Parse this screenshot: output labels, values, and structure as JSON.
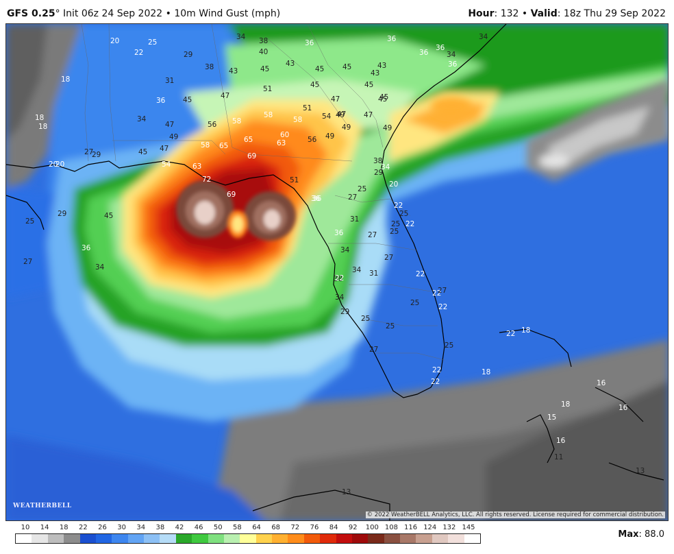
{
  "header": {
    "model": "GFS 0.25",
    "degree": "°",
    "init_text": " Init 06z 24 Sep 2022 • 10m Wind Gust (mph)",
    "hour_label": "Hour",
    "hour_value": ": 132 • ",
    "valid_label": "Valid",
    "valid_value": ": 18z Thu 29 Sep 2022"
  },
  "copyright": "© 2022 WeatherBELL Analytics, LLC. All rights reserved. License required for commercial distribution.",
  "logo_text": "WEATHERBELL",
  "legend": {
    "ticks": [
      "10",
      "14",
      "18",
      "22",
      "26",
      "30",
      "34",
      "38",
      "42",
      "46",
      "50",
      "58",
      "64",
      "68",
      "72",
      "76",
      "84",
      "92",
      "100",
      "108",
      "116",
      "124",
      "132",
      "145"
    ],
    "colors": [
      "#ffffff",
      "#e6e6e6",
      "#bdbdbd",
      "#8c8c8c",
      "#1a4fd0",
      "#2166e3",
      "#3d86ef",
      "#62a4f4",
      "#8cc0f5",
      "#b5dcf7",
      "#2aa82a",
      "#3fc93f",
      "#7fe07f",
      "#b9f0b0",
      "#ffff99",
      "#ffd24d",
      "#ffb030",
      "#ff8c1a",
      "#f25a0a",
      "#e02a0a",
      "#c20d0d",
      "#9e0a0a",
      "#7a2a1a",
      "#8a5040",
      "#a87868",
      "#c8a090",
      "#e0c8c0",
      "#f2e0dc",
      "#ffffff"
    ]
  },
  "max": {
    "label": "Max",
    "value": ": 88.0"
  },
  "map_labels": [
    {
      "t": "20",
      "c": "w"
    },
    {
      "t": "25",
      "c": "w"
    },
    {
      "t": "22",
      "c": "w"
    },
    {
      "t": "29",
      "c": "k"
    },
    {
      "t": "34",
      "c": "k"
    },
    {
      "t": "38",
      "c": "k"
    },
    {
      "t": "40",
      "c": "k"
    },
    {
      "t": "36",
      "c": "w"
    },
    {
      "t": "36",
      "c": "w"
    },
    {
      "t": "36",
      "c": "w"
    },
    {
      "t": "36",
      "c": "w"
    },
    {
      "t": "34",
      "c": "k"
    },
    {
      "t": "36",
      "c": "w"
    },
    {
      "t": "34",
      "c": "k"
    },
    {
      "t": "18",
      "c": "w"
    },
    {
      "t": "31",
      "c": "k"
    },
    {
      "t": "38",
      "c": "k"
    },
    {
      "t": "43",
      "c": "k"
    },
    {
      "t": "45",
      "c": "k"
    },
    {
      "t": "43",
      "c": "k"
    },
    {
      "t": "45",
      "c": "k"
    },
    {
      "t": "45",
      "c": "k"
    },
    {
      "t": "43",
      "c": "k"
    },
    {
      "t": "43",
      "c": "k"
    },
    {
      "t": "47",
      "c": "k"
    },
    {
      "t": "45",
      "c": "k"
    },
    {
      "t": "51",
      "c": "k"
    },
    {
      "t": "45",
      "c": "k"
    },
    {
      "t": "45",
      "c": "k"
    },
    {
      "t": "36",
      "c": "w"
    },
    {
      "t": "45",
      "c": "k"
    },
    {
      "t": "47",
      "c": "k"
    },
    {
      "t": "47",
      "c": "k"
    },
    {
      "t": "45",
      "c": "k"
    },
    {
      "t": "18",
      "c": "w"
    },
    {
      "t": "18",
      "c": "w"
    },
    {
      "t": "34",
      "c": "k"
    },
    {
      "t": "47",
      "c": "k"
    },
    {
      "t": "56",
      "c": "k"
    },
    {
      "t": "58",
      "c": "w"
    },
    {
      "t": "58",
      "c": "w"
    },
    {
      "t": "58",
      "c": "w"
    },
    {
      "t": "51",
      "c": "k"
    },
    {
      "t": "54",
      "c": "k"
    },
    {
      "t": "49",
      "c": "k"
    },
    {
      "t": "49",
      "c": "k"
    },
    {
      "t": "47",
      "c": "k"
    },
    {
      "t": "49",
      "c": "k"
    },
    {
      "t": "45",
      "c": "k"
    },
    {
      "t": "47",
      "c": "k"
    },
    {
      "t": "49",
      "c": "k"
    },
    {
      "t": "58",
      "c": "w"
    },
    {
      "t": "65",
      "c": "w"
    },
    {
      "t": "65",
      "c": "w"
    },
    {
      "t": "60",
      "c": "w"
    },
    {
      "t": "63",
      "c": "w"
    },
    {
      "t": "56",
      "c": "k"
    },
    {
      "t": "49",
      "c": "k"
    },
    {
      "t": "27",
      "c": "k"
    },
    {
      "t": "29",
      "c": "k"
    },
    {
      "t": "20",
      "c": "w"
    },
    {
      "t": "20",
      "c": "w"
    },
    {
      "t": "54",
      "c": "w"
    },
    {
      "t": "63",
      "c": "w"
    },
    {
      "t": "69",
      "c": "w"
    },
    {
      "t": "72",
      "c": "w"
    },
    {
      "t": "69",
      "c": "w"
    },
    {
      "t": "51",
      "c": "k"
    },
    {
      "t": "38",
      "c": "k"
    },
    {
      "t": "34",
      "c": "w"
    },
    {
      "t": "29",
      "c": "k"
    },
    {
      "t": "20",
      "c": "w"
    },
    {
      "t": "25",
      "c": "k"
    },
    {
      "t": "27",
      "c": "k"
    },
    {
      "t": "22",
      "c": "w"
    },
    {
      "t": "25",
      "c": "k"
    },
    {
      "t": "25",
      "c": "k"
    },
    {
      "t": "22",
      "c": "w"
    },
    {
      "t": "36",
      "c": "w"
    },
    {
      "t": "31",
      "c": "k"
    },
    {
      "t": "29",
      "c": "k"
    },
    {
      "t": "45",
      "c": "k"
    },
    {
      "t": "25",
      "c": "k"
    },
    {
      "t": "36",
      "c": "w"
    },
    {
      "t": "27",
      "c": "k"
    },
    {
      "t": "27",
      "c": "k"
    },
    {
      "t": "36",
      "c": "w"
    },
    {
      "t": "38",
      "c": "k"
    },
    {
      "t": "34",
      "c": "k"
    },
    {
      "t": "27",
      "c": "k"
    },
    {
      "t": "34",
      "c": "k"
    },
    {
      "t": "31",
      "c": "k"
    },
    {
      "t": "36",
      "c": "w"
    },
    {
      "t": "34",
      "c": "k"
    },
    {
      "t": "27",
      "c": "k"
    },
    {
      "t": "25",
      "c": "k"
    },
    {
      "t": "34",
      "c": "k"
    },
    {
      "t": "29",
      "c": "k"
    },
    {
      "t": "25",
      "c": "k"
    },
    {
      "t": "27",
      "c": "k"
    },
    {
      "t": "22",
      "c": "w"
    },
    {
      "t": "25",
      "c": "k"
    },
    {
      "t": "25",
      "c": "k"
    },
    {
      "t": "22",
      "c": "w"
    },
    {
      "t": "22",
      "c": "w"
    },
    {
      "t": "22",
      "c": "w"
    },
    {
      "t": "27",
      "c": "k"
    },
    {
      "t": "22",
      "c": "w"
    },
    {
      "t": "25",
      "c": "k"
    },
    {
      "t": "22",
      "c": "w"
    },
    {
      "t": "22",
      "c": "w"
    },
    {
      "t": "18",
      "c": "w"
    },
    {
      "t": "18",
      "c": "w"
    },
    {
      "t": "18",
      "c": "w"
    },
    {
      "t": "16",
      "c": "w"
    },
    {
      "t": "16",
      "c": "w"
    },
    {
      "t": "15",
      "c": "w"
    },
    {
      "t": "16",
      "c": "w"
    },
    {
      "t": "11",
      "c": "k"
    },
    {
      "t": "13",
      "c": "k"
    },
    {
      "t": "13",
      "c": "k"
    }
  ]
}
